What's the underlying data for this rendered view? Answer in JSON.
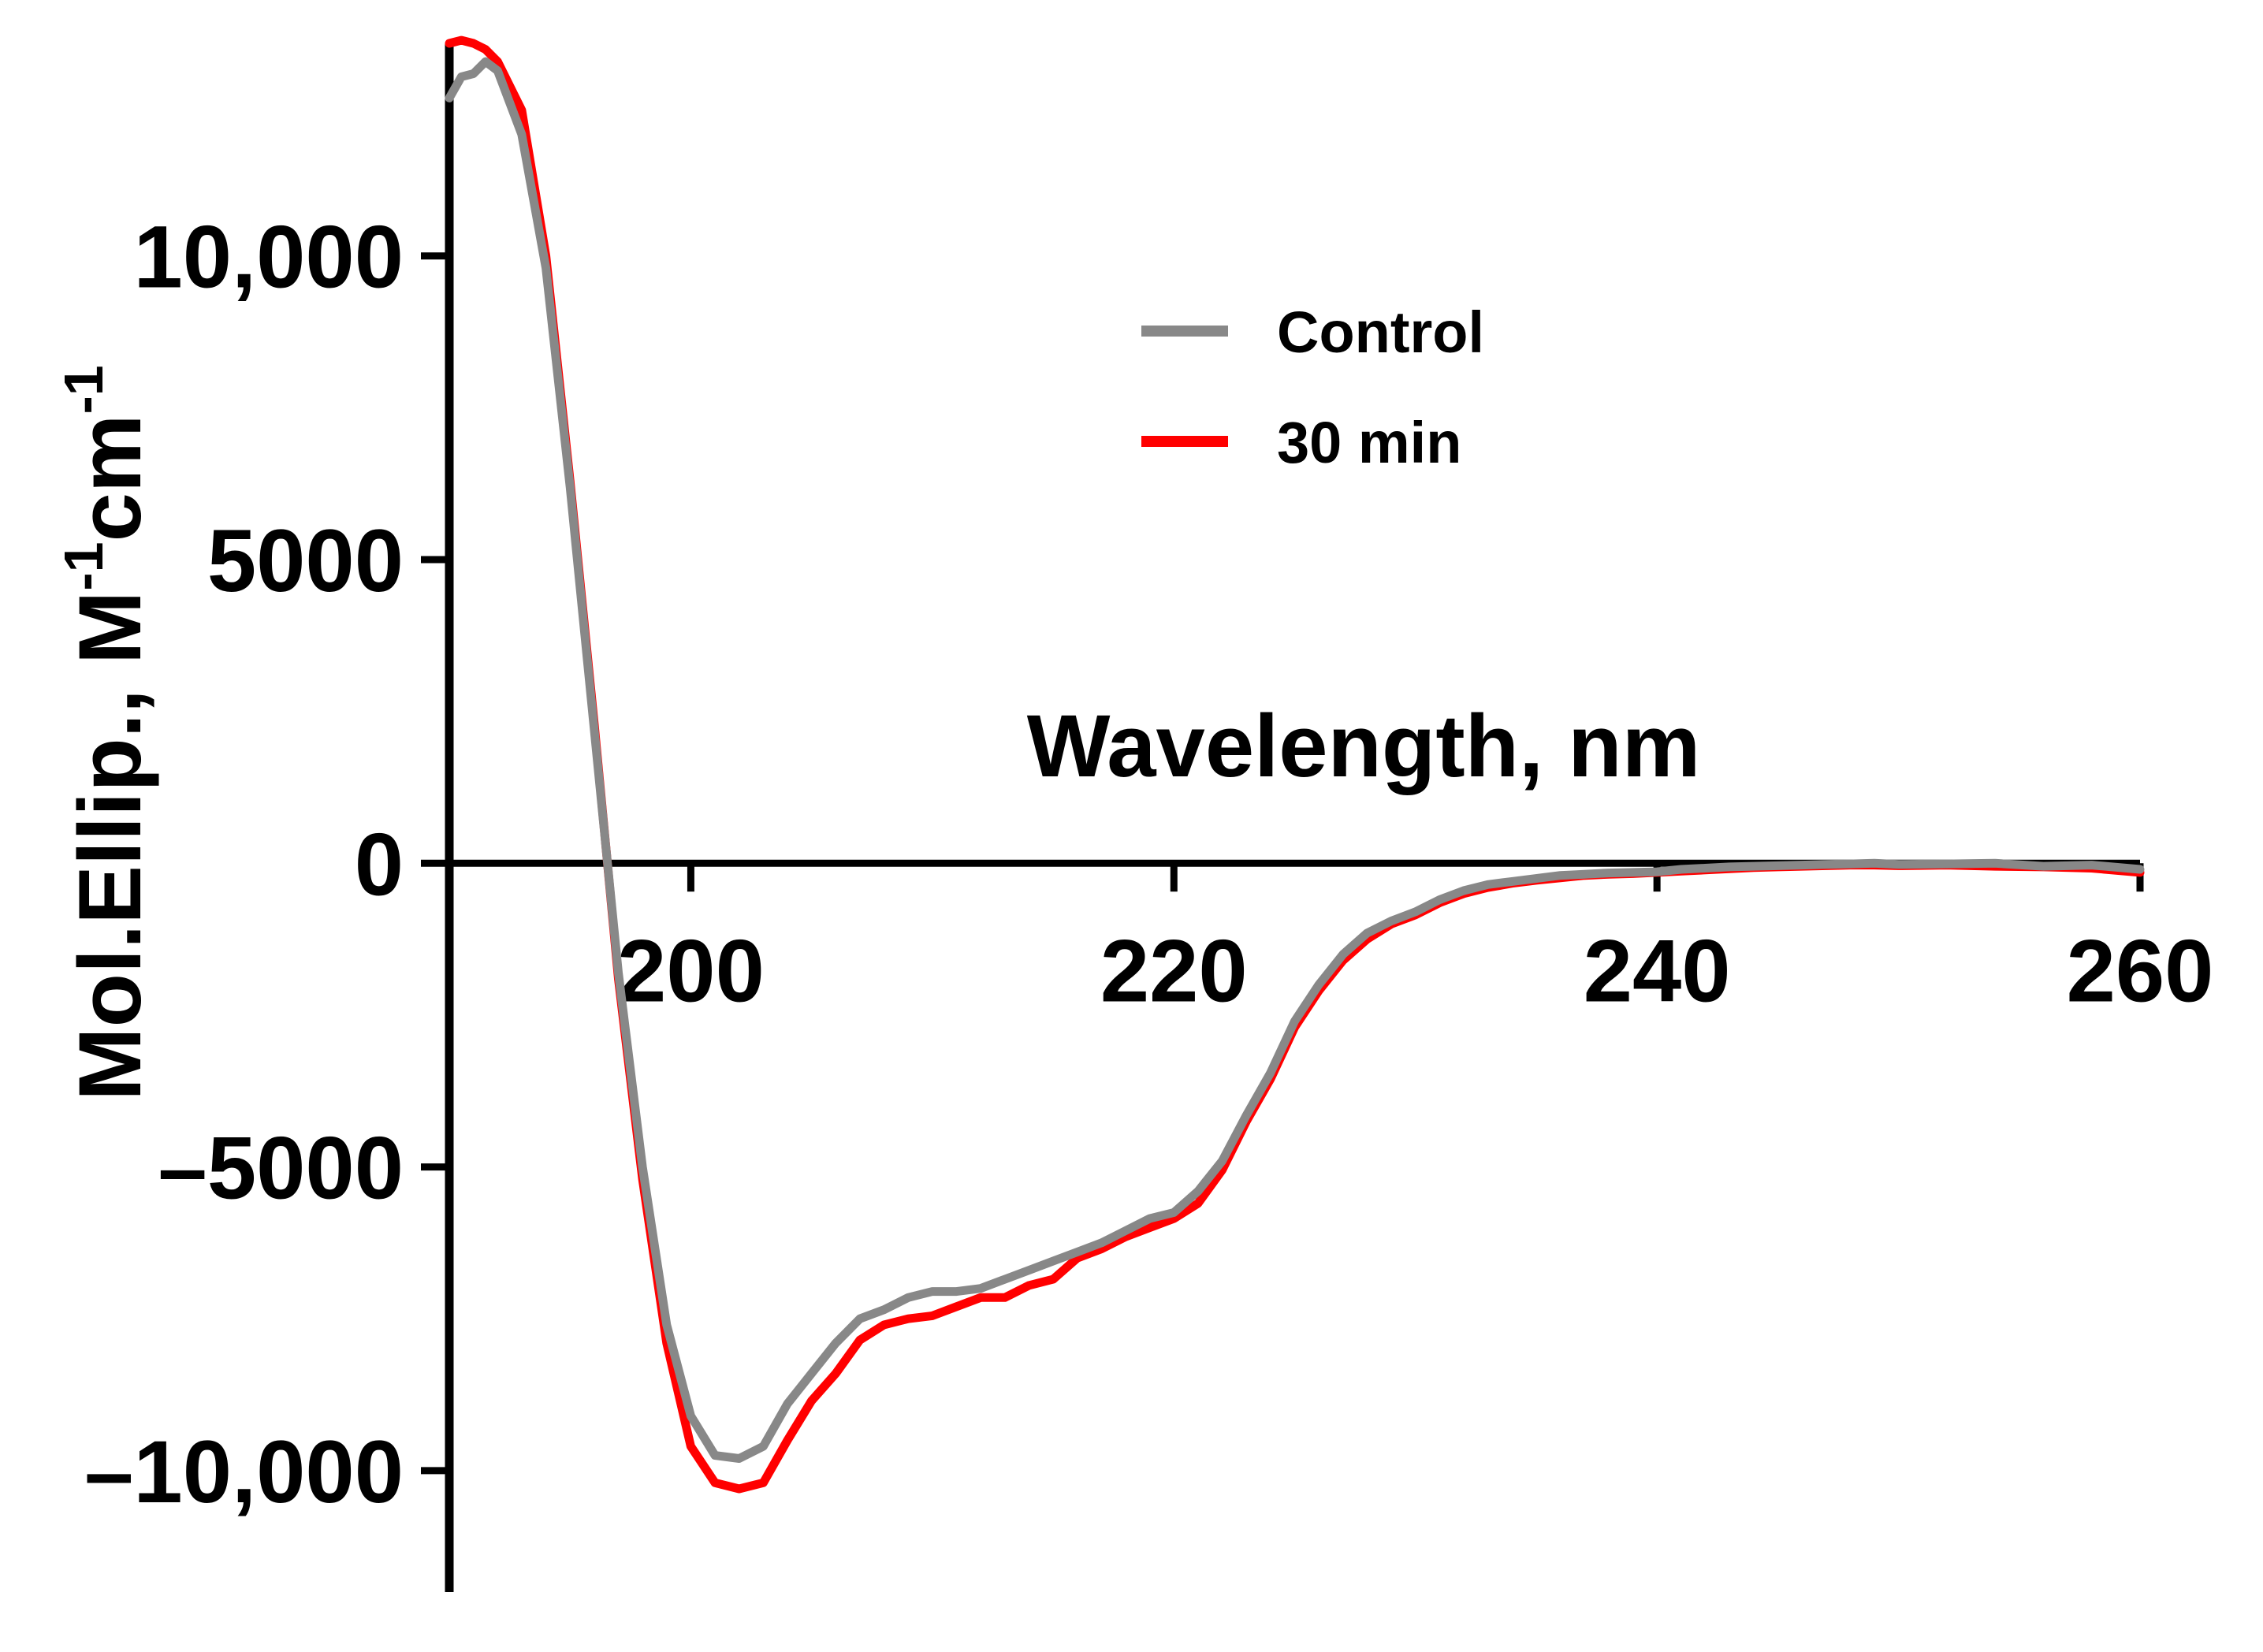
{
  "chart_data": {
    "type": "line",
    "title": "",
    "xlabel": "Wavelength, nm",
    "ylabel_main": "Mol.Ellip., M",
    "ylabel_sup1": "-1",
    "ylabel_mid": "cm",
    "ylabel_sup2": "-1",
    "xlim": [
      190,
      260
    ],
    "ylim": [
      -12000,
      13500
    ],
    "x_ticks": [
      200,
      220,
      240,
      260
    ],
    "x_tick_labels": [
      "200",
      "220",
      "240",
      "260"
    ],
    "y_ticks": [
      -10000,
      -5000,
      0,
      5000,
      10000
    ],
    "y_tick_labels": [
      "–10,000",
      "–5000",
      "0",
      "5000",
      "10,000"
    ],
    "legend_position": "upper-center",
    "series": [
      {
        "name": "Control",
        "color": "#888888",
        "x": [
          190,
          190.5,
          191,
          191.5,
          192,
          193,
          194,
          195,
          196,
          197,
          198,
          199,
          200,
          201,
          202,
          203,
          204,
          205,
          206,
          207,
          208,
          209,
          210,
          211,
          212,
          213,
          214,
          215,
          216,
          217,
          218,
          219,
          220,
          221,
          222,
          223,
          224,
          225,
          226,
          227,
          228,
          229,
          230,
          231,
          232,
          233,
          234,
          235,
          236,
          237,
          238,
          239,
          240,
          241,
          242,
          243,
          244,
          245,
          246,
          247,
          248,
          249,
          250,
          252,
          254,
          256,
          258,
          260
        ],
        "y": [
          12600,
          12950,
          13000,
          13200,
          13050,
          12000,
          9800,
          6200,
          2200,
          -1800,
          -5000,
          -7600,
          -9100,
          -9750,
          -9800,
          -9600,
          -8900,
          -8400,
          -7900,
          -7500,
          -7350,
          -7150,
          -7050,
          -7050,
          -7000,
          -6850,
          -6700,
          -6550,
          -6400,
          -6250,
          -6050,
          -5850,
          -5750,
          -5400,
          -4900,
          -4150,
          -3450,
          -2600,
          -2000,
          -1500,
          -1150,
          -950,
          -800,
          -600,
          -450,
          -350,
          -300,
          -250,
          -200,
          -180,
          -160,
          -150,
          -140,
          -100,
          -80,
          -60,
          -50,
          -40,
          -30,
          -20,
          -10,
          0,
          -20,
          -10,
          0,
          -50,
          -30,
          -100
        ]
      },
      {
        "name": "30 min",
        "color": "#ff0000",
        "x": [
          190,
          190.5,
          191,
          191.5,
          192,
          193,
          194,
          195,
          196,
          197,
          198,
          199,
          200,
          201,
          202,
          203,
          204,
          205,
          206,
          207,
          208,
          209,
          210,
          211,
          212,
          213,
          214,
          215,
          216,
          217,
          218,
          219,
          220,
          221,
          222,
          223,
          224,
          225,
          226,
          227,
          228,
          229,
          230,
          231,
          232,
          233,
          234,
          235,
          236,
          237,
          238,
          239,
          240,
          241,
          242,
          243,
          244,
          245,
          246,
          247,
          248,
          249,
          250,
          252,
          254,
          256,
          258,
          260
        ],
        "y": [
          13500,
          13550,
          13500,
          13400,
          13200,
          12400,
          10000,
          6300,
          2300,
          -1900,
          -5200,
          -7900,
          -9600,
          -10200,
          -10300,
          -10200,
          -9500,
          -8850,
          -8400,
          -7850,
          -7600,
          -7500,
          -7450,
          -7300,
          -7150,
          -7150,
          -6950,
          -6850,
          -6500,
          -6350,
          -6150,
          -6000,
          -5850,
          -5600,
          -5050,
          -4250,
          -3550,
          -2700,
          -2100,
          -1600,
          -1250,
          -1000,
          -850,
          -650,
          -500,
          -400,
          -330,
          -280,
          -240,
          -200,
          -180,
          -170,
          -150,
          -130,
          -110,
          -90,
          -70,
          -60,
          -50,
          -40,
          -30,
          -30,
          -40,
          -30,
          -50,
          -60,
          -80,
          -150
        ]
      }
    ]
  }
}
